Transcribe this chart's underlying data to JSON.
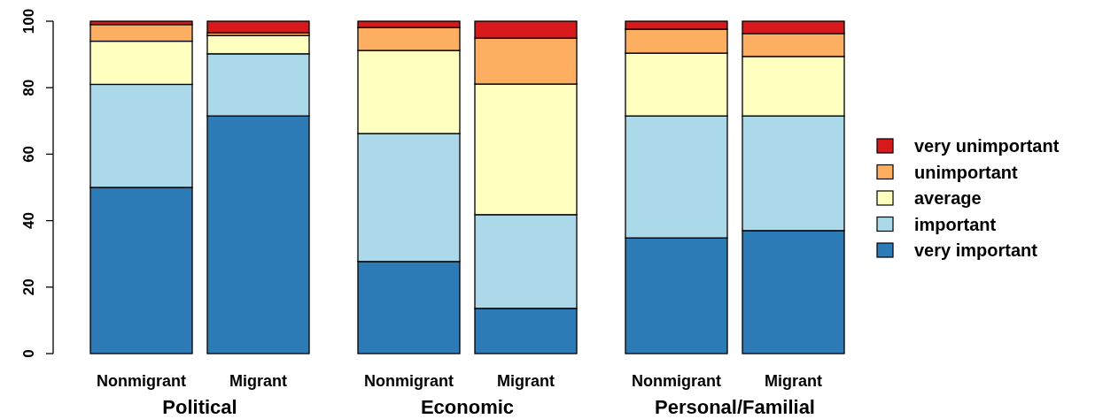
{
  "chart_data": {
    "type": "bar",
    "stacked": true,
    "categories": [
      "Nonmigrant",
      "Migrant",
      "Nonmigrant",
      "Migrant",
      "Nonmigrant",
      "Migrant"
    ],
    "series": [
      {
        "name": "very important",
        "color": "#2c7bb6",
        "values": [
          50,
          71.5,
          27.7,
          13.6,
          34.8,
          37
        ]
      },
      {
        "name": "important",
        "color": "#abd9e9",
        "values": [
          31,
          18.7,
          38.5,
          28.2,
          36.7,
          34.5
        ]
      },
      {
        "name": "average",
        "color": "#ffffbf",
        "values": [
          13,
          5.5,
          25,
          39.3,
          18.9,
          17.9
        ]
      },
      {
        "name": "unimportant",
        "color": "#fdae61",
        "values": [
          5,
          0.8,
          6.9,
          13.8,
          7.2,
          6.9
        ]
      },
      {
        "name": "very unimportant",
        "color": "#d7191c",
        "values": [
          1,
          3.5,
          1.9,
          5.1,
          2.4,
          3.7
        ]
      }
    ],
    "annotations": [
      "Political",
      "Economic",
      "Personal/Familial"
    ],
    "ylim": [
      0,
      100
    ],
    "yticks": [
      0,
      20,
      40,
      60,
      80,
      100
    ],
    "grid": false,
    "legend": "right"
  }
}
